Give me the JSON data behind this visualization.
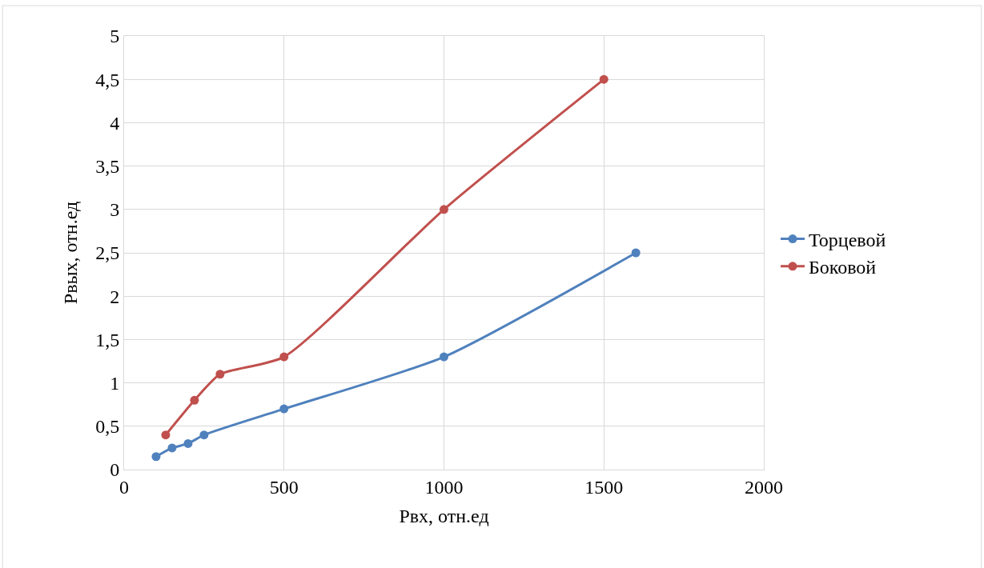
{
  "chart_data": {
    "type": "line",
    "xlabel": "Pвх, отн.ед",
    "ylabel": "Pвых, отн.ед",
    "series": [
      {
        "name": "Торцевой",
        "color": "#4f81bd",
        "x": [
          100,
          150,
          200,
          250,
          500,
          1000,
          1600
        ],
        "values": [
          0.15,
          0.25,
          0.3,
          0.4,
          0.7,
          1.3,
          2.5
        ]
      },
      {
        "name": "Боковой",
        "color": "#c0504d",
        "x": [
          130,
          220,
          300,
          500,
          1000,
          1500
        ],
        "values": [
          0.4,
          0.8,
          1.1,
          1.3,
          3.0,
          4.5
        ]
      }
    ],
    "xlim": [
      0,
      2000
    ],
    "xticks": [
      0,
      500,
      1000,
      1500,
      2000
    ],
    "ylim": [
      0,
      5
    ],
    "yticks": [
      0,
      {
        "value": 0.5,
        "label": "0,5"
      },
      1,
      {
        "value": 1.5,
        "label": "1,5"
      },
      2,
      {
        "value": 2.5,
        "label": "2,5"
      },
      3,
      {
        "value": 3.5,
        "label": "3,5"
      },
      4,
      {
        "value": 4.5,
        "label": "4,5"
      },
      5
    ],
    "grid": true,
    "legend": "right",
    "marker": "circle",
    "line_style": "solid"
  }
}
